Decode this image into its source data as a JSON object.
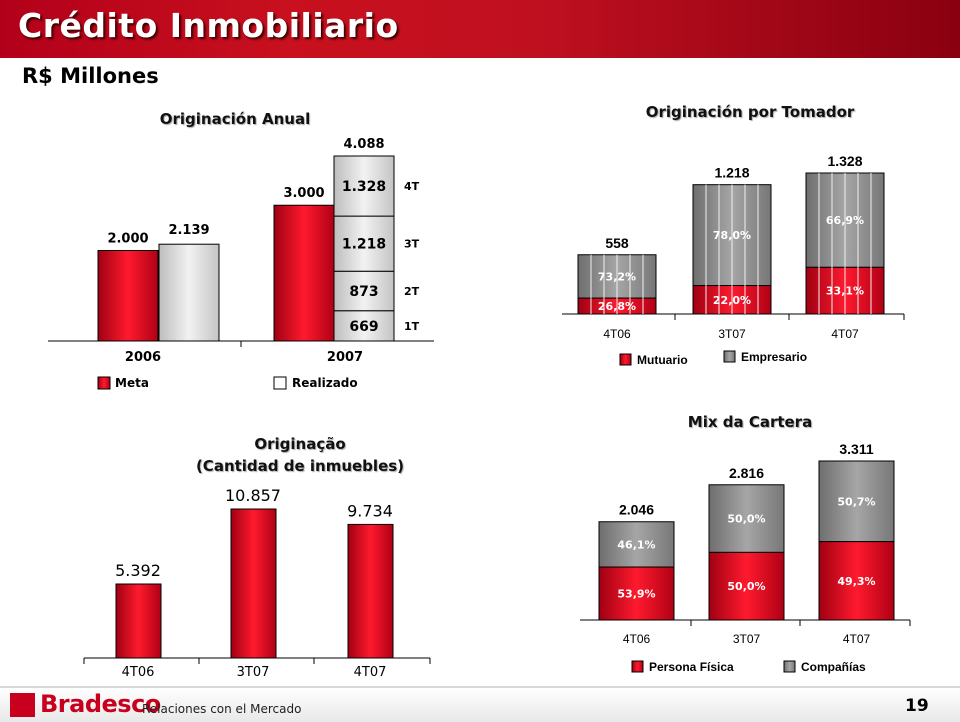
{
  "header": {
    "title": "Crédito Inmobiliario",
    "subtitle": "R$ Millones"
  },
  "colors": {
    "red": "#d2001a",
    "light_gray": "#d8d8d8",
    "dark_gray": "#8c8c8c"
  },
  "chart_data": [
    {
      "id": "annual",
      "type": "bar",
      "title": "Originación Anual",
      "categories": [
        "2006",
        "2007"
      ],
      "series": [
        {
          "name": "Meta",
          "values": [
            2000,
            3000
          ],
          "labels": [
            "2.000",
            "3.000"
          ]
        },
        {
          "name": "Realizado",
          "values": [
            2139,
            4088
          ],
          "labels": [
            "2.139",
            "4.088"
          ]
        }
      ],
      "stack_2007_realizado": {
        "segments": [
          {
            "quarter": "1T",
            "value": 669,
            "label": "669"
          },
          {
            "quarter": "2T",
            "value": 873,
            "label": "873"
          },
          {
            "quarter": "3T",
            "value": 1218,
            "label": "1.218"
          },
          {
            "quarter": "4T",
            "value": 1328,
            "label": "1.328"
          }
        ]
      }
    },
    {
      "id": "tomador",
      "type": "bar",
      "title": "Originación por Tomador",
      "categories": [
        "4T06",
        "3T07",
        "4T07"
      ],
      "totals": [
        558,
        1218,
        1328
      ],
      "total_labels": [
        "558",
        "1.218",
        "1.328"
      ],
      "series": [
        {
          "name": "Mutuario",
          "percent": [
            26.8,
            22.0,
            33.1
          ],
          "labels": [
            "26,8%",
            "22,0%",
            "33,1%"
          ]
        },
        {
          "name": "Empresario",
          "percent": [
            73.2,
            78.0,
            66.9
          ],
          "labels": [
            "73,2%",
            "78,0%",
            "66,9%"
          ]
        }
      ]
    },
    {
      "id": "cantidad",
      "type": "bar",
      "title": "Originação",
      "title2": "(Cantidad de inmuebles)",
      "categories": [
        "4T06",
        "3T07",
        "4T07"
      ],
      "values": [
        5392,
        10857,
        9734
      ],
      "labels": [
        "5.392",
        "10.857",
        "9.734"
      ]
    },
    {
      "id": "mix",
      "type": "bar",
      "title": "Mix da Cartera",
      "categories": [
        "4T06",
        "3T07",
        "4T07"
      ],
      "totals": [
        2046,
        2816,
        3311
      ],
      "total_labels": [
        "2.046",
        "2.816",
        "3.311"
      ],
      "series": [
        {
          "name": "Persona Física",
          "percent": [
            53.9,
            50.0,
            49.3
          ],
          "labels": [
            "53,9%",
            "50,0%",
            "49,3%"
          ]
        },
        {
          "name": "Compañías",
          "percent": [
            46.1,
            50.0,
            50.7
          ],
          "labels": [
            "46,1%",
            "50,0%",
            "50,7%"
          ]
        }
      ]
    }
  ],
  "footer": {
    "brand": "Bradesco",
    "text": "Relaciones con el Mercado",
    "page": "19"
  }
}
